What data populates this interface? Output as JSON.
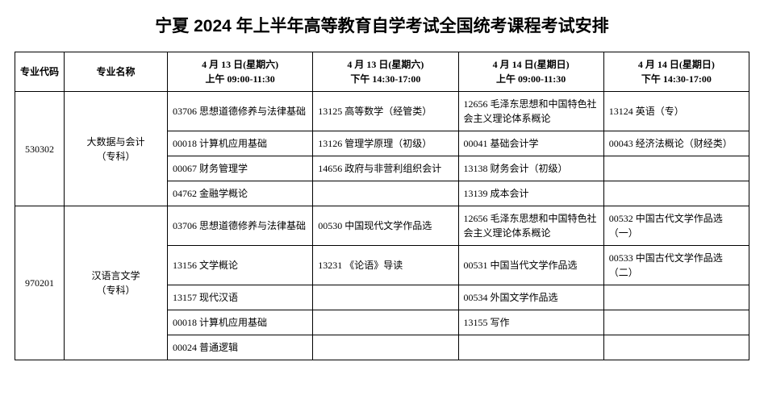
{
  "title": "宁夏 2024 年上半年高等教育自学考试全国统考课程考试安排",
  "headers": {
    "code": "专业代码",
    "name": "专业名称",
    "slot1_l1": "4 月 13 日(星期六)",
    "slot1_l2": "上午 09:00-11:30",
    "slot2_l1": "4 月 13 日(星期六)",
    "slot2_l2": "下午 14:30-17:00",
    "slot3_l1": "4 月 14 日(星期日)",
    "slot3_l2": "上午 09:00-11:30",
    "slot4_l1": "4 月 14 日(星期日)",
    "slot4_l2": "下午 14:30-17:00"
  },
  "majors": [
    {
      "code": "530302",
      "name_l1": "大数据与会计",
      "name_l2": "（专科）",
      "rows": [
        {
          "s1": "03706 思想道德修养与法律基础",
          "s2": "13125 高等数学（经管类）",
          "s3": "12656 毛泽东思想和中国特色社会主义理论体系概论",
          "s4": "13124 英语（专）"
        },
        {
          "s1": "00018 计算机应用基础",
          "s2": "13126 管理学原理（初级）",
          "s3": "00041 基础会计学",
          "s4": "00043 经济法概论（财经类）"
        },
        {
          "s1": "00067 财务管理学",
          "s2": "14656 政府与非营利组织会计",
          "s3": "13138 财务会计（初级）",
          "s4": ""
        },
        {
          "s1": "04762 金融学概论",
          "s2": "",
          "s3": "13139 成本会计",
          "s4": ""
        }
      ]
    },
    {
      "code": "970201",
      "name_l1": "汉语言文学",
      "name_l2": "（专科）",
      "rows": [
        {
          "s1": "03706 思想道德修养与法律基础",
          "s2": "00530 中国现代文学作品选",
          "s3": "12656 毛泽东思想和中国特色社会主义理论体系概论",
          "s4": "00532 中国古代文学作品选（一）"
        },
        {
          "s1": "13156 文学概论",
          "s2": "13231 《论语》导读",
          "s3": "00531 中国当代文学作品选",
          "s4": "00533 中国古代文学作品选（二）"
        },
        {
          "s1": "13157 现代汉语",
          "s2": "",
          "s3": "00534 外国文学作品选",
          "s4": ""
        },
        {
          "s1": "00018 计算机应用基础",
          "s2": "",
          "s3": "13155 写作",
          "s4": ""
        },
        {
          "s1": "00024 普通逻辑",
          "s2": "",
          "s3": "",
          "s4": ""
        }
      ]
    }
  ]
}
